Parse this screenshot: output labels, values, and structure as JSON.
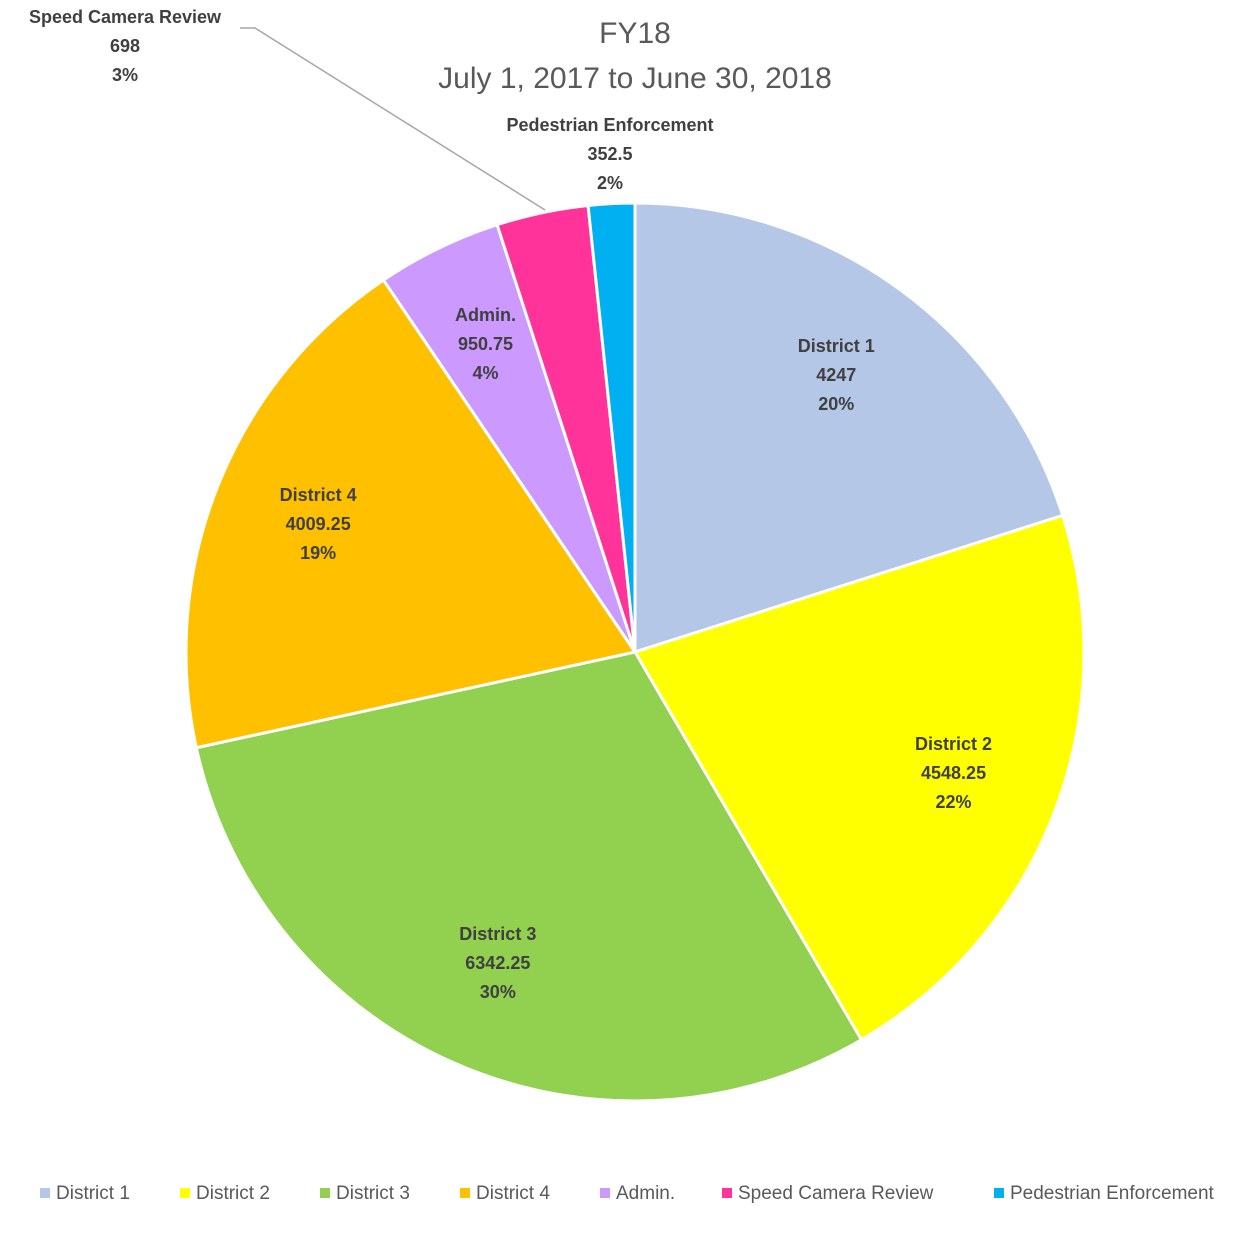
{
  "chart_data": {
    "type": "pie",
    "title": "FY18",
    "subtitle": "July 1, 2017 to June 30, 2018",
    "categories": [
      "District 1",
      "District 2",
      "District 3",
      "District 4",
      "Admin.",
      "Speed Camera Review",
      "Pedestrian Enforcement"
    ],
    "values": [
      4247,
      4548.25,
      6342.25,
      4009.25,
      950.75,
      698,
      352.5
    ],
    "percent_labels": [
      "20%",
      "22%",
      "30%",
      "19%",
      "4%",
      "3%",
      "2%"
    ],
    "colors": [
      "#b4c7e7",
      "#ffff00",
      "#92d050",
      "#ffc000",
      "#cc99ff",
      "#ff3399",
      "#00b0f0"
    ],
    "legend": "bottom"
  }
}
